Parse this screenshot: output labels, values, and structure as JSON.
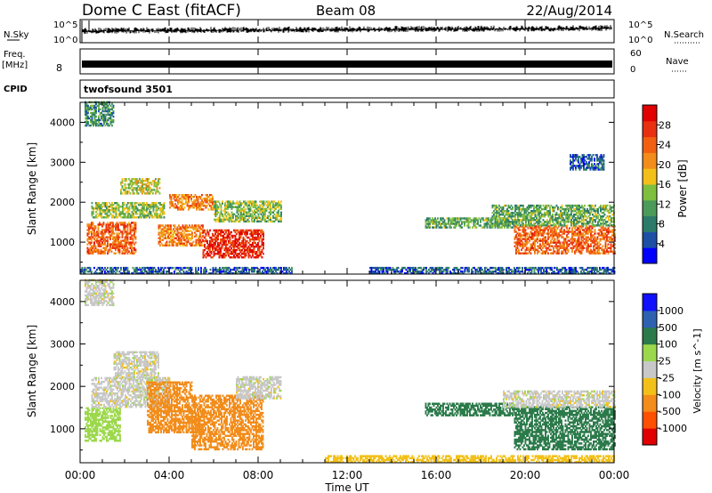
{
  "header": {
    "radar_title": "Dome C East (fitACF)",
    "beam": "Beam 08",
    "date": "22/Aug/2014"
  },
  "strips": {
    "nsky": {
      "label": "N.Sky",
      "ticks": [
        "10^5",
        "10^0"
      ]
    },
    "nsearch": {
      "label": "N.Search",
      "ticks": [
        "10^5",
        "10^0"
      ]
    },
    "freq": {
      "label": "Freq.",
      "unit": "[MHz]",
      "ticks": [
        "8"
      ]
    },
    "nave": {
      "label": "Nave",
      "ticks": [
        "60",
        "0"
      ]
    },
    "cpid": {
      "label": "CPID",
      "value": "twofsound 3501"
    }
  },
  "time_axis": {
    "label": "Time UT",
    "ticks": [
      "00:00",
      "04:00",
      "08:00",
      "12:00",
      "16:00",
      "20:00",
      "00:00"
    ]
  },
  "colors": {
    "power": [
      "#0000ff",
      "#1d4fa5",
      "#2b7a6a",
      "#4a9a5a",
      "#7fbf3f",
      "#f2c018",
      "#f28c1a",
      "#f06010",
      "#e83010",
      "#e00000"
    ],
    "velocity": [
      "#e00000",
      "#ff5000",
      "#f28c1a",
      "#f2c018",
      "#c8c8c8",
      "#9cd84c",
      "#2b7a4a",
      "#2e62b0",
      "#1010ff"
    ]
  },
  "chart_data": [
    {
      "type": "heatmap",
      "title": "Power",
      "ylabel": "Slant Range [km]",
      "xlabel": "Time UT",
      "x_unit": "hours UT",
      "xlim": [
        0,
        24
      ],
      "ylim": [
        200,
        4500
      ],
      "yticks": [
        1000,
        2000,
        3000,
        4000
      ],
      "colorbar": {
        "label": "Power [dB]",
        "ticks": [
          4,
          8,
          12,
          16,
          20,
          24,
          28
        ],
        "range": [
          0,
          32
        ]
      },
      "patches": [
        {
          "t": [
            0.3,
            2.5
          ],
          "r": [
            700,
            1500
          ],
          "value": 24
        },
        {
          "t": [
            0.5,
            3.8
          ],
          "r": [
            1600,
            2000
          ],
          "value": 14
        },
        {
          "t": [
            1.8,
            3.6
          ],
          "r": [
            2200,
            2600
          ],
          "value": 16
        },
        {
          "t": [
            3.5,
            5.5
          ],
          "r": [
            900,
            1400
          ],
          "value": 22
        },
        {
          "t": [
            4.0,
            6.0
          ],
          "r": [
            1800,
            2200
          ],
          "value": 22
        },
        {
          "t": [
            5.5,
            8.2
          ],
          "r": [
            600,
            1300
          ],
          "value": 28
        },
        {
          "t": [
            6.0,
            9.0
          ],
          "r": [
            1500,
            2000
          ],
          "value": 14
        },
        {
          "t": [
            0.2,
            1.5
          ],
          "r": [
            3900,
            4500
          ],
          "value": 10
        },
        {
          "t": [
            0.0,
            9.5
          ],
          "r": [
            200,
            350
          ],
          "value": 6
        },
        {
          "t": [
            15.5,
            19.5
          ],
          "r": [
            1350,
            1600
          ],
          "value": 12
        },
        {
          "t": [
            19.5,
            24.0
          ],
          "r": [
            700,
            1400
          ],
          "value": 24
        },
        {
          "t": [
            18.5,
            24.0
          ],
          "r": [
            1400,
            1900
          ],
          "value": 12
        },
        {
          "t": [
            13.0,
            24.0
          ],
          "r": [
            200,
            350
          ],
          "value": 6
        },
        {
          "t": [
            22.0,
            23.5
          ],
          "r": [
            2800,
            3200
          ],
          "value": 6
        }
      ]
    },
    {
      "type": "heatmap",
      "title": "Velocity",
      "ylabel": "Slant Range [km]",
      "xlabel": "Time UT",
      "x_unit": "hours UT",
      "xlim": [
        0,
        24
      ],
      "ylim": [
        200,
        4500
      ],
      "yticks": [
        1000,
        2000,
        3000,
        4000
      ],
      "colorbar": {
        "label": "Velocity [m s^-1]",
        "ticks": [
          1000,
          500,
          100,
          25,
          -25,
          -100,
          -500,
          -1000
        ]
      },
      "patches": [
        {
          "t": [
            0.2,
            1.8
          ],
          "r": [
            700,
            1500
          ],
          "value": 60
        },
        {
          "t": [
            0.5,
            4.0
          ],
          "r": [
            1500,
            2200
          ],
          "value": 0
        },
        {
          "t": [
            1.5,
            3.5
          ],
          "r": [
            2200,
            2800
          ],
          "value": 0
        },
        {
          "t": [
            3.0,
            5.0
          ],
          "r": [
            1400,
            2100
          ],
          "value": -300
        },
        {
          "t": [
            3.0,
            5.5
          ],
          "r": [
            900,
            1400
          ],
          "value": -300
        },
        {
          "t": [
            5.0,
            8.2
          ],
          "r": [
            500,
            1800
          ],
          "value": -300
        },
        {
          "t": [
            7.0,
            9.0
          ],
          "r": [
            1700,
            2200
          ],
          "value": 0
        },
        {
          "t": [
            0.2,
            1.5
          ],
          "r": [
            3900,
            4500
          ],
          "value": 0
        },
        {
          "t": [
            15.5,
            19.5
          ],
          "r": [
            1300,
            1600
          ],
          "value": 300
        },
        {
          "t": [
            19.5,
            24.0
          ],
          "r": [
            500,
            1500
          ],
          "value": 300
        },
        {
          "t": [
            19.0,
            24.0
          ],
          "r": [
            1500,
            1900
          ],
          "value": 0
        },
        {
          "t": [
            11.0,
            24.0
          ],
          "r": [
            200,
            350
          ],
          "value": -60
        }
      ]
    }
  ]
}
